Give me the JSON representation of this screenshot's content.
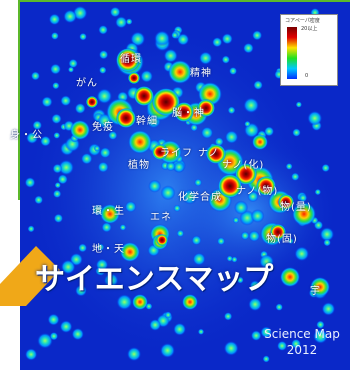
{
  "legend": {
    "title": "コアペーパ密度",
    "max_label": "20以上",
    "min_label": "0"
  },
  "regions": {
    "r_gaiko": "循環",
    "r_seishin": "精神",
    "r_gan": "がん",
    "r_mi": "身・公",
    "r_menneki": "免疫",
    "r_sai": "幹細",
    "r_no": "脳・神",
    "r_raifu": "ライフ",
    "r_nano": "ナノ",
    "r_shokubutsu": "植物",
    "r_nano_ka": "ナノ(化)",
    "r_kagaku": "化学合成",
    "r_nano_butsu": "ナノ(物)",
    "r_butsuryo": "物(量)",
    "r_kankyo": "環・生",
    "r_ene": "エネ",
    "r_butsu_ka": "物(固)",
    "r_chikyu": "地・天",
    "r_uchu": "宇"
  },
  "banner_text": "サイエンスマップ",
  "caption": {
    "line1": "Science Map",
    "line2": "2012"
  },
  "colors": {
    "background": "#0a28c8",
    "banner_arrow": "#f0a818",
    "frame_line": "#5cb82a"
  }
}
